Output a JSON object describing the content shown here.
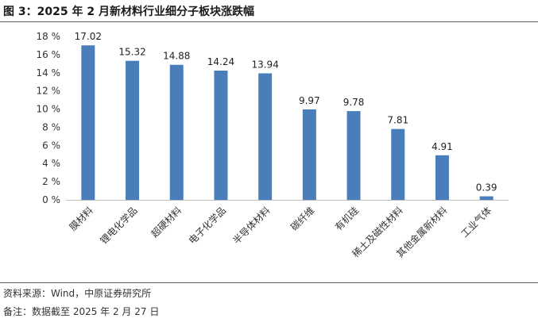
{
  "header": {
    "title": "图 3：2025 年 2 月新材料行业细分子板块涨跌幅"
  },
  "footer": {
    "source": "资料来源：Wind，中原证券研究所",
    "remark": "备注：数据截至 2025 年 2 月 27 日"
  },
  "colors": {
    "bar": "#4a7ebb",
    "axis": "#bfbfbf"
  },
  "chart_data": {
    "type": "bar",
    "title": "图 3：2025 年 2 月新材料行业细分子板块涨跌幅",
    "xlabel": "",
    "ylabel": "",
    "ylim": [
      0,
      18
    ],
    "y_ticks": [
      0,
      2,
      4,
      6,
      8,
      10,
      12,
      14,
      16,
      18
    ],
    "y_tick_suffix": " %",
    "grid": false,
    "legend": "none",
    "categories": [
      "膜材料",
      "锂电化学品",
      "超硬材料",
      "电子化学品",
      "半导体材料",
      "碳纤维",
      "有机硅",
      "稀土及磁性材料",
      "其他金属新材料",
      "工业气体"
    ],
    "values": [
      17.02,
      15.32,
      14.88,
      14.24,
      13.94,
      9.97,
      9.78,
      7.81,
      4.91,
      0.39
    ],
    "value_labels": [
      "17.02",
      "15.32",
      "14.88",
      "14.24",
      "13.94",
      "9.97",
      "9.78",
      "7.81",
      "4.91",
      "0.39"
    ]
  }
}
